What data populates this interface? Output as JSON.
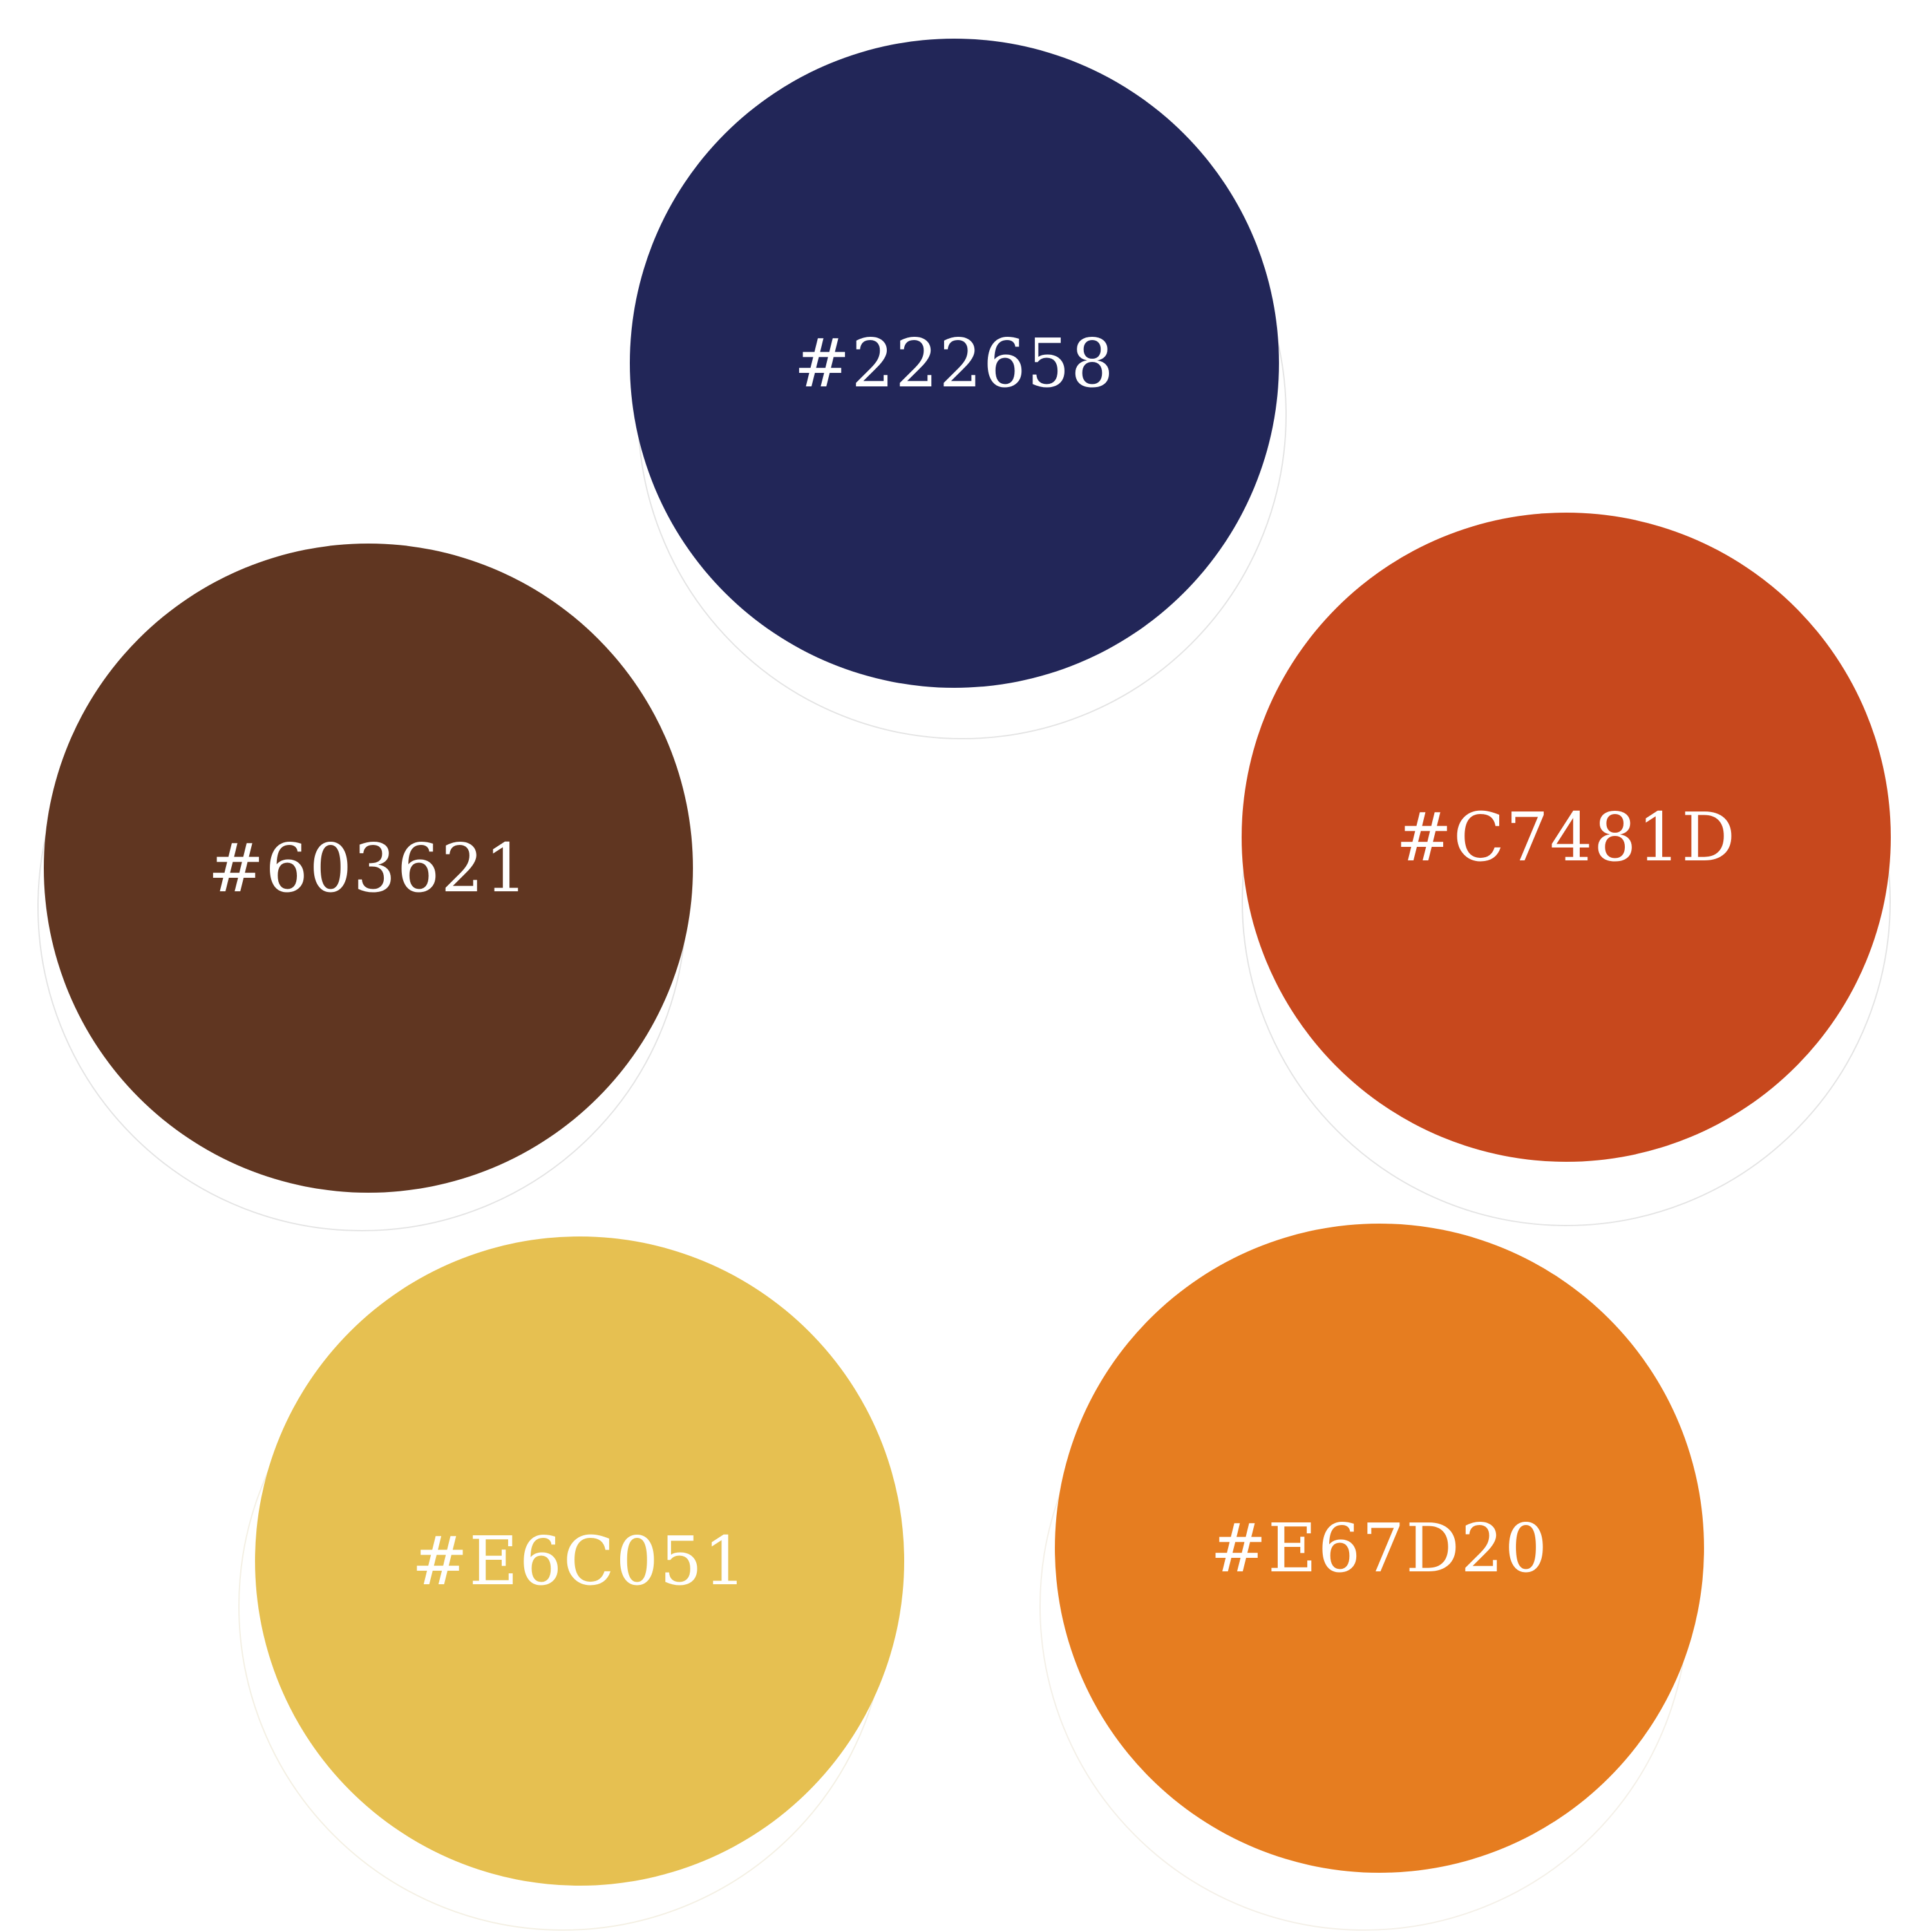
{
  "palette": {
    "swatches": [
      {
        "label": "#222658",
        "color": "#222658"
      },
      {
        "label": "#603621",
        "color": "#603621"
      },
      {
        "label": "#C7481D",
        "color": "#C7481D"
      },
      {
        "label": "#E6C051",
        "color": "#E6C051"
      },
      {
        "label": "#E67D20",
        "color": "#E67D20"
      }
    ]
  }
}
